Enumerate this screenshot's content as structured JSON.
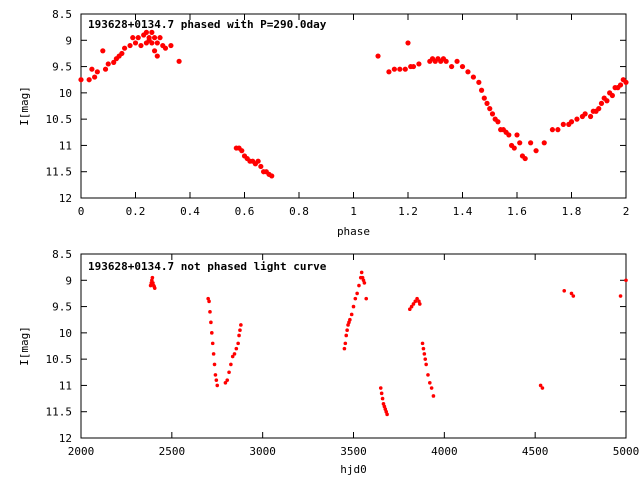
{
  "chart_data": [
    {
      "type": "scatter",
      "title": "193628+0134.7 phased with P=290.0day",
      "xlabel": "phase",
      "ylabel": "I[mag]",
      "xlim": [
        0,
        2
      ],
      "ylim": [
        12,
        8.5
      ],
      "y_inverted": true,
      "xticks": [
        0,
        0.2,
        0.4,
        0.6,
        0.8,
        1,
        1.2,
        1.4,
        1.6,
        1.8,
        2
      ],
      "xtick_labels": [
        "0",
        "0.2",
        "0.4",
        "0.6",
        "0.8",
        "1",
        "1.2",
        "1.4",
        "1.6",
        "1.8",
        "2"
      ],
      "yticks": [
        8.5,
        9,
        9.5,
        10,
        10.5,
        11,
        11.5,
        12
      ],
      "ytick_labels": [
        "8.5",
        "9",
        "9.5",
        "10",
        "10.5",
        "11",
        "11.5",
        "12"
      ],
      "grid": false,
      "marker_color": "#ff0000",
      "series": [
        {
          "points": [
            [
              0.0,
              9.75
            ],
            [
              0.03,
              9.75
            ],
            [
              0.04,
              9.55
            ],
            [
              0.05,
              9.7
            ],
            [
              0.06,
              9.6
            ],
            [
              0.08,
              9.2
            ],
            [
              0.09,
              9.55
            ],
            [
              0.1,
              9.45
            ],
            [
              0.12,
              9.42
            ],
            [
              0.13,
              9.35
            ],
            [
              0.14,
              9.3
            ],
            [
              0.15,
              9.25
            ],
            [
              0.16,
              9.15
            ],
            [
              0.18,
              9.1
            ],
            [
              0.19,
              8.95
            ],
            [
              0.2,
              9.05
            ],
            [
              0.21,
              8.95
            ],
            [
              0.22,
              9.1
            ],
            [
              0.23,
              8.9
            ],
            [
              0.24,
              8.85
            ],
            [
              0.24,
              9.05
            ],
            [
              0.25,
              9.0
            ],
            [
              0.25,
              8.95
            ],
            [
              0.26,
              8.85
            ],
            [
              0.26,
              9.05
            ],
            [
              0.27,
              8.95
            ],
            [
              0.27,
              9.2
            ],
            [
              0.28,
              9.05
            ],
            [
              0.28,
              9.3
            ],
            [
              0.29,
              8.95
            ],
            [
              0.3,
              9.1
            ],
            [
              0.31,
              9.15
            ],
            [
              0.33,
              9.1
            ],
            [
              0.36,
              9.4
            ],
            [
              0.57,
              11.05
            ],
            [
              0.58,
              11.05
            ],
            [
              0.59,
              11.1
            ],
            [
              0.6,
              11.2
            ],
            [
              0.61,
              11.25
            ],
            [
              0.62,
              11.3
            ],
            [
              0.63,
              11.3
            ],
            [
              0.64,
              11.35
            ],
            [
              0.65,
              11.3
            ],
            [
              0.66,
              11.4
            ],
            [
              0.67,
              11.5
            ],
            [
              0.68,
              11.5
            ],
            [
              0.69,
              11.55
            ],
            [
              0.7,
              11.58
            ],
            [
              1.09,
              9.3
            ],
            [
              1.13,
              9.6
            ],
            [
              1.15,
              9.55
            ],
            [
              1.17,
              9.55
            ],
            [
              1.19,
              9.55
            ],
            [
              1.2,
              9.05
            ],
            [
              1.21,
              9.5
            ],
            [
              1.22,
              9.5
            ],
            [
              1.24,
              9.45
            ],
            [
              1.28,
              9.4
            ],
            [
              1.29,
              9.35
            ],
            [
              1.3,
              9.4
            ],
            [
              1.31,
              9.35
            ],
            [
              1.32,
              9.4
            ],
            [
              1.33,
              9.35
            ],
            [
              1.34,
              9.4
            ],
            [
              1.36,
              9.5
            ],
            [
              1.38,
              9.4
            ],
            [
              1.4,
              9.5
            ],
            [
              1.42,
              9.6
            ],
            [
              1.44,
              9.7
            ],
            [
              1.46,
              9.8
            ],
            [
              1.47,
              9.95
            ],
            [
              1.48,
              10.1
            ],
            [
              1.49,
              10.2
            ],
            [
              1.5,
              10.3
            ],
            [
              1.51,
              10.4
            ],
            [
              1.52,
              10.5
            ],
            [
              1.53,
              10.55
            ],
            [
              1.54,
              10.7
            ],
            [
              1.55,
              10.7
            ],
            [
              1.56,
              10.75
            ],
            [
              1.57,
              10.8
            ],
            [
              1.58,
              11.0
            ],
            [
              1.59,
              11.05
            ],
            [
              1.6,
              10.8
            ],
            [
              1.61,
              10.95
            ],
            [
              1.62,
              11.2
            ],
            [
              1.63,
              11.25
            ],
            [
              1.65,
              10.95
            ],
            [
              1.67,
              11.1
            ],
            [
              1.7,
              10.95
            ],
            [
              1.73,
              10.7
            ],
            [
              1.75,
              10.7
            ],
            [
              1.77,
              10.6
            ],
            [
              1.79,
              10.6
            ],
            [
              1.8,
              10.55
            ],
            [
              1.82,
              10.5
            ],
            [
              1.84,
              10.45
            ],
            [
              1.85,
              10.4
            ],
            [
              1.87,
              10.45
            ],
            [
              1.88,
              10.35
            ],
            [
              1.89,
              10.35
            ],
            [
              1.9,
              10.3
            ],
            [
              1.91,
              10.2
            ],
            [
              1.92,
              10.1
            ],
            [
              1.93,
              10.15
            ],
            [
              1.94,
              10.0
            ],
            [
              1.95,
              10.05
            ],
            [
              1.96,
              9.9
            ],
            [
              1.97,
              9.9
            ],
            [
              1.98,
              9.85
            ],
            [
              1.99,
              9.75
            ],
            [
              2.0,
              9.8
            ]
          ]
        }
      ]
    },
    {
      "type": "scatter",
      "title": "193628+0134.7 not phased light curve",
      "xlabel": "hjd0",
      "ylabel": "I[mag]",
      "xlim": [
        2000,
        5000
      ],
      "ylim": [
        12,
        8.5
      ],
      "y_inverted": true,
      "xticks": [
        2000,
        2500,
        3000,
        3500,
        4000,
        4500,
        5000
      ],
      "xtick_labels": [
        "2000",
        "2500",
        "3000",
        "3500",
        "4000",
        "4500",
        "5000"
      ],
      "yticks": [
        8.5,
        9,
        9.5,
        10,
        10.5,
        11,
        11.5,
        12
      ],
      "ytick_labels": [
        "8.5",
        "9",
        "9.5",
        "10",
        "10.5",
        "11",
        "11.5",
        "12"
      ],
      "grid": false,
      "marker_color": "#ff0000",
      "series": [
        {
          "points": [
            [
              2383,
              9.1
            ],
            [
              2387,
              9.05
            ],
            [
              2390,
              9.0
            ],
            [
              2393,
              8.95
            ],
            [
              2396,
              9.05
            ],
            [
              2400,
              9.1
            ],
            [
              2403,
              9.12
            ],
            [
              2406,
              9.15
            ],
            [
              2700,
              9.35
            ],
            [
              2705,
              9.4
            ],
            [
              2710,
              9.6
            ],
            [
              2715,
              9.8
            ],
            [
              2720,
              10.0
            ],
            [
              2725,
              10.2
            ],
            [
              2730,
              10.4
            ],
            [
              2735,
              10.6
            ],
            [
              2740,
              10.8
            ],
            [
              2745,
              10.9
            ],
            [
              2750,
              11.0
            ],
            [
              2795,
              10.95
            ],
            [
              2805,
              10.9
            ],
            [
              2815,
              10.75
            ],
            [
              2825,
              10.6
            ],
            [
              2835,
              10.45
            ],
            [
              2845,
              10.4
            ],
            [
              2855,
              10.3
            ],
            [
              2865,
              10.2
            ],
            [
              2870,
              10.05
            ],
            [
              2875,
              9.95
            ],
            [
              2880,
              9.85
            ],
            [
              3450,
              10.3
            ],
            [
              3455,
              10.2
            ],
            [
              3460,
              10.05
            ],
            [
              3465,
              9.95
            ],
            [
              3470,
              9.85
            ],
            [
              3475,
              9.8
            ],
            [
              3480,
              9.75
            ],
            [
              3490,
              9.65
            ],
            [
              3500,
              9.5
            ],
            [
              3510,
              9.35
            ],
            [
              3520,
              9.25
            ],
            [
              3530,
              9.1
            ],
            [
              3540,
              8.95
            ],
            [
              3545,
              8.85
            ],
            [
              3550,
              8.95
            ],
            [
              3555,
              9.0
            ],
            [
              3560,
              9.05
            ],
            [
              3570,
              9.35
            ],
            [
              3650,
              11.05
            ],
            [
              3655,
              11.15
            ],
            [
              3660,
              11.25
            ],
            [
              3665,
              11.35
            ],
            [
              3670,
              11.4
            ],
            [
              3675,
              11.45
            ],
            [
              3680,
              11.5
            ],
            [
              3685,
              11.55
            ],
            [
              3810,
              9.55
            ],
            [
              3820,
              9.5
            ],
            [
              3830,
              9.45
            ],
            [
              3840,
              9.4
            ],
            [
              3850,
              9.35
            ],
            [
              3860,
              9.4
            ],
            [
              3865,
              9.45
            ],
            [
              3880,
              10.2
            ],
            [
              3885,
              10.3
            ],
            [
              3890,
              10.4
            ],
            [
              3895,
              10.5
            ],
            [
              3900,
              10.6
            ],
            [
              3910,
              10.8
            ],
            [
              3920,
              10.95
            ],
            [
              3930,
              11.05
            ],
            [
              3940,
              11.2
            ],
            [
              4530,
              11.0
            ],
            [
              4540,
              11.05
            ],
            [
              4660,
              9.2
            ],
            [
              4700,
              9.25
            ],
            [
              4710,
              9.3
            ],
            [
              4970,
              9.3
            ],
            [
              5000,
              9.0
            ]
          ]
        }
      ]
    }
  ]
}
